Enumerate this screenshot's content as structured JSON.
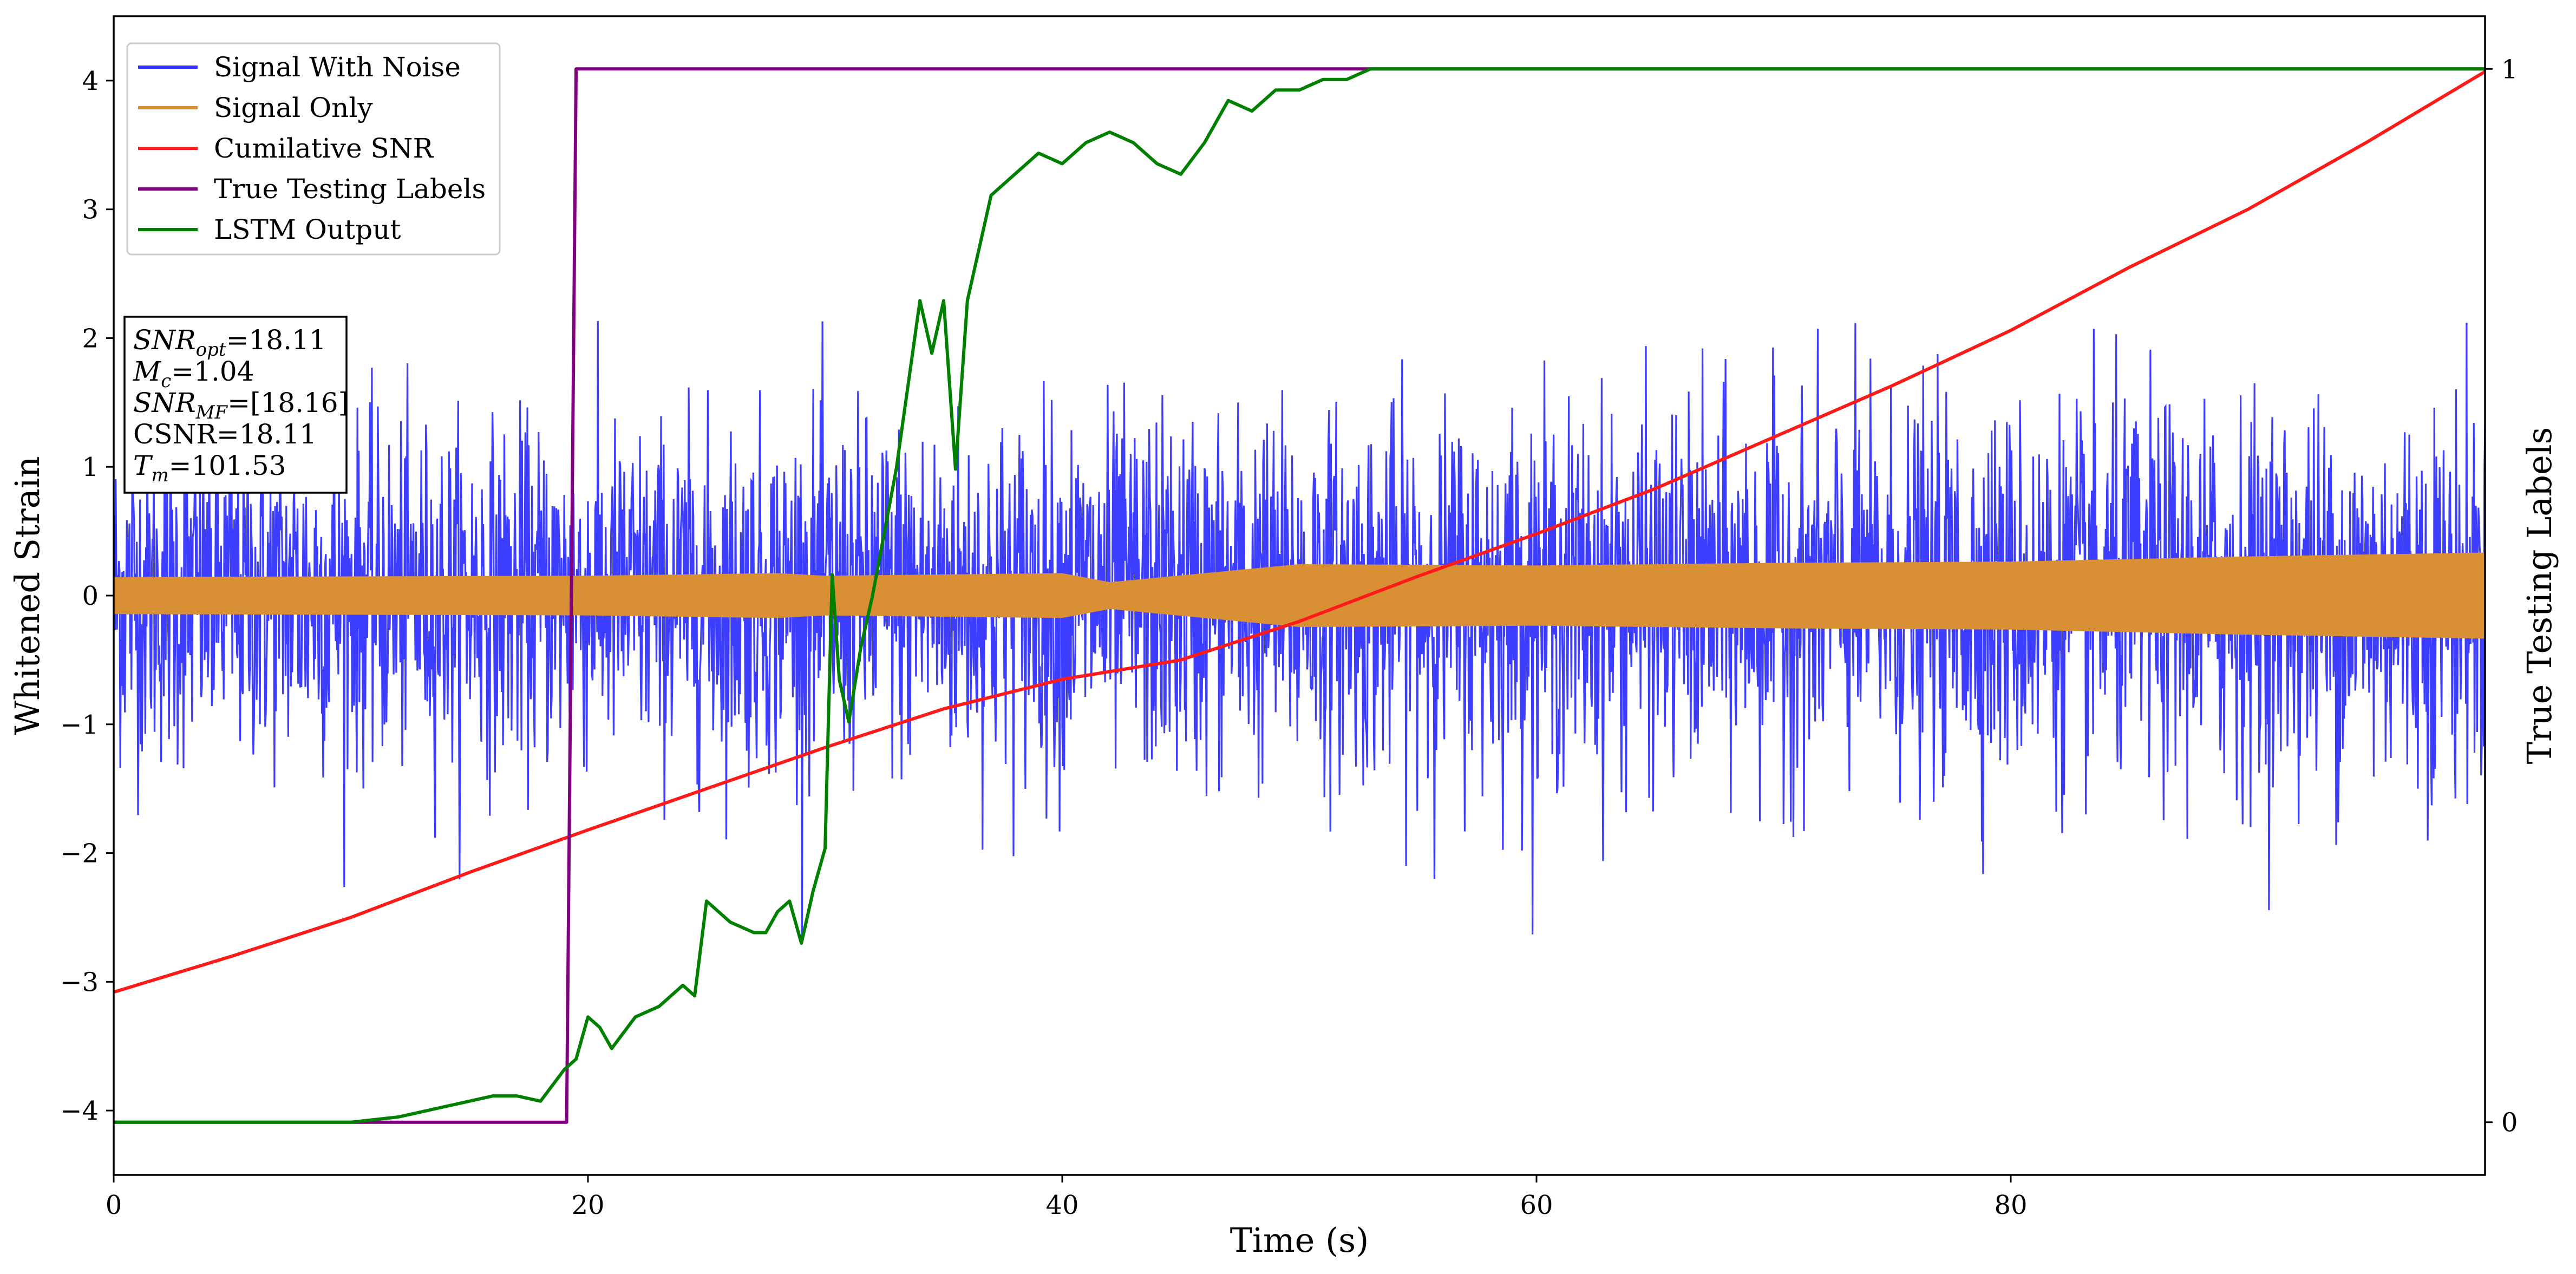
{
  "chart_data": {
    "type": "line",
    "xlabel": "Time (s)",
    "ylabel": "Whitened Strain",
    "ylabel_right": "True Testing Labels",
    "xlim": [
      0,
      100
    ],
    "ylim": [
      -4.5,
      4.5
    ],
    "ylim_right": [
      -0.05,
      1.05
    ],
    "x_ticks": [
      0,
      20,
      40,
      60,
      80
    ],
    "y_ticks": [
      -4,
      -3,
      -2,
      -1,
      0,
      1,
      2,
      3,
      4
    ],
    "y_ticks_right": [
      0,
      1
    ],
    "legend": {
      "location": "top-left",
      "entries": [
        "Signal With Noise",
        "Signal Only",
        "Cumilative SNR",
        "True Testing Labels",
        "LSTM Output"
      ]
    },
    "annotation": {
      "location": "upper-left",
      "lines": [
        {
          "base": "SNR",
          "sub": "opt",
          "rest": "=18.11"
        },
        {
          "base": "M",
          "sub": "c",
          "rest": "=1.04"
        },
        {
          "base": "SNR",
          "sub": "MF",
          "rest": "=[18.16]"
        },
        {
          "base": "CSNR",
          "sub": "",
          "rest": "=18.11"
        },
        {
          "base": "T",
          "sub": "m",
          "rest": "=101.53"
        }
      ]
    },
    "series": [
      {
        "name": "Signal With Noise",
        "color": "#3333ff",
        "axis": "left",
        "style": "dense-noise",
        "envelope": {
          "x": [
            0,
            20,
            40,
            60,
            80,
            100
          ],
          "sigma": [
            0.65,
            0.65,
            0.7,
            0.7,
            0.72,
            0.75
          ]
        }
      },
      {
        "name": "Signal Only",
        "color": "#d99035",
        "axis": "left",
        "style": "band",
        "x": [
          0,
          20,
          28,
          30,
          40,
          42,
          50,
          60,
          70,
          80,
          90,
          100
        ],
        "amplitude": [
          0.14,
          0.15,
          0.17,
          0.15,
          0.17,
          0.1,
          0.24,
          0.23,
          0.25,
          0.26,
          0.3,
          0.33
        ]
      },
      {
        "name": "Cumilative SNR",
        "color": "#ff1a1a",
        "axis": "left",
        "x": [
          0,
          5,
          10,
          15,
          20,
          25,
          30,
          35,
          40,
          45,
          50,
          55,
          60,
          65,
          70,
          75,
          80,
          85,
          90,
          95,
          100
        ],
        "y": [
          -3.08,
          -2.8,
          -2.5,
          -2.15,
          -1.82,
          -1.5,
          -1.18,
          -0.88,
          -0.65,
          -0.5,
          -0.2,
          0.15,
          0.48,
          0.83,
          1.23,
          1.63,
          2.06,
          2.55,
          3.0,
          3.52,
          4.07
        ]
      },
      {
        "name": "True Testing Labels",
        "color": "#800080",
        "axis": "right",
        "x": [
          0,
          19.1,
          19.5,
          100
        ],
        "y": [
          0,
          0,
          1,
          1
        ]
      },
      {
        "name": "LSTM Output",
        "color": "#008000",
        "axis": "right",
        "x": [
          0,
          10,
          12,
          13,
          14,
          15,
          16,
          17,
          18,
          19,
          19.5,
          20,
          20.5,
          21,
          22,
          23,
          23.5,
          24,
          24.5,
          25,
          25.5,
          26,
          27,
          27.5,
          28,
          28.5,
          29,
          29.5,
          30,
          30.3,
          30.6,
          31,
          31.5,
          32,
          33,
          34,
          34.5,
          35,
          35.5,
          36,
          37,
          38,
          39,
          40,
          41,
          42,
          43,
          44,
          45,
          46,
          47,
          48,
          49,
          50,
          51,
          52,
          53,
          54,
          55,
          56,
          58,
          100
        ],
        "y": [
          0,
          0,
          0.005,
          0.01,
          0.015,
          0.02,
          0.025,
          0.025,
          0.02,
          0.05,
          0.06,
          0.1,
          0.09,
          0.07,
          0.1,
          0.11,
          0.12,
          0.13,
          0.12,
          0.21,
          0.2,
          0.19,
          0.18,
          0.18,
          0.2,
          0.21,
          0.17,
          0.22,
          0.26,
          0.52,
          0.42,
          0.38,
          0.45,
          0.5,
          0.62,
          0.78,
          0.73,
          0.78,
          0.62,
          0.78,
          0.88,
          0.9,
          0.92,
          0.91,
          0.93,
          0.94,
          0.93,
          0.91,
          0.9,
          0.93,
          0.97,
          0.96,
          0.98,
          0.98,
          0.99,
          0.99,
          1.0,
          1.0,
          1.0,
          1.0,
          1.0,
          1.0
        ]
      }
    ]
  }
}
